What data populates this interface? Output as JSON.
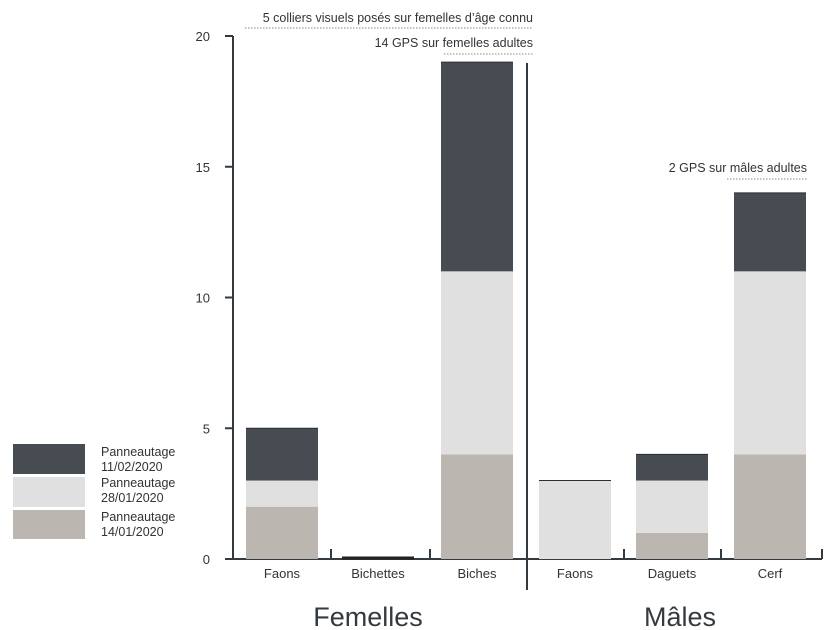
{
  "chart_data": {
    "type": "bar",
    "stacked": true,
    "categories": [
      "Faons",
      "Bichettes",
      "Biches",
      "Faons",
      "Daguets",
      "Cerf"
    ],
    "groups": [
      {
        "label": "Femelles",
        "categories": [
          "Faons",
          "Bichettes",
          "Biches"
        ]
      },
      {
        "label": "Mâles",
        "categories": [
          "Faons",
          "Daguets",
          "Cerf"
        ]
      }
    ],
    "series": [
      {
        "name": "Panneautage 14/01/2020",
        "color": "#bcb6b1",
        "values": [
          2,
          0,
          4,
          0,
          1,
          4
        ]
      },
      {
        "name": "Panneautage 28/01/2020",
        "color": "#e0e0e0",
        "values": [
          1,
          0,
          7,
          3,
          2,
          7
        ]
      },
      {
        "name": "Panneautage 11/02/2020",
        "color": "#464c52",
        "values": [
          2,
          0,
          8,
          0,
          1,
          3
        ]
      }
    ],
    "legend_order": [
      {
        "line1": "Panneautage",
        "line2": "11/02/2020",
        "color": "#464c52"
      },
      {
        "line1": "Panneautage",
        "line2": "28/01/2020",
        "color": "#e0e0e0"
      },
      {
        "line1": "Panneautage",
        "line2": "14/01/2020",
        "color": "#bcb6b1"
      }
    ],
    "ylim": [
      0,
      20
    ],
    "yticks": [
      0,
      5,
      10,
      15,
      20
    ],
    "xlabel": "",
    "ylabel": "",
    "title": "",
    "grid": false,
    "legend_position": "bottom-left",
    "annotations": [
      "5 colliers visuels posés sur femelles d’âge connu",
      "14 GPS sur femelles adultes",
      "2 GPS sur mâles adultes"
    ],
    "axis_color": "#333a40",
    "zero_bar_color": "#222222"
  }
}
